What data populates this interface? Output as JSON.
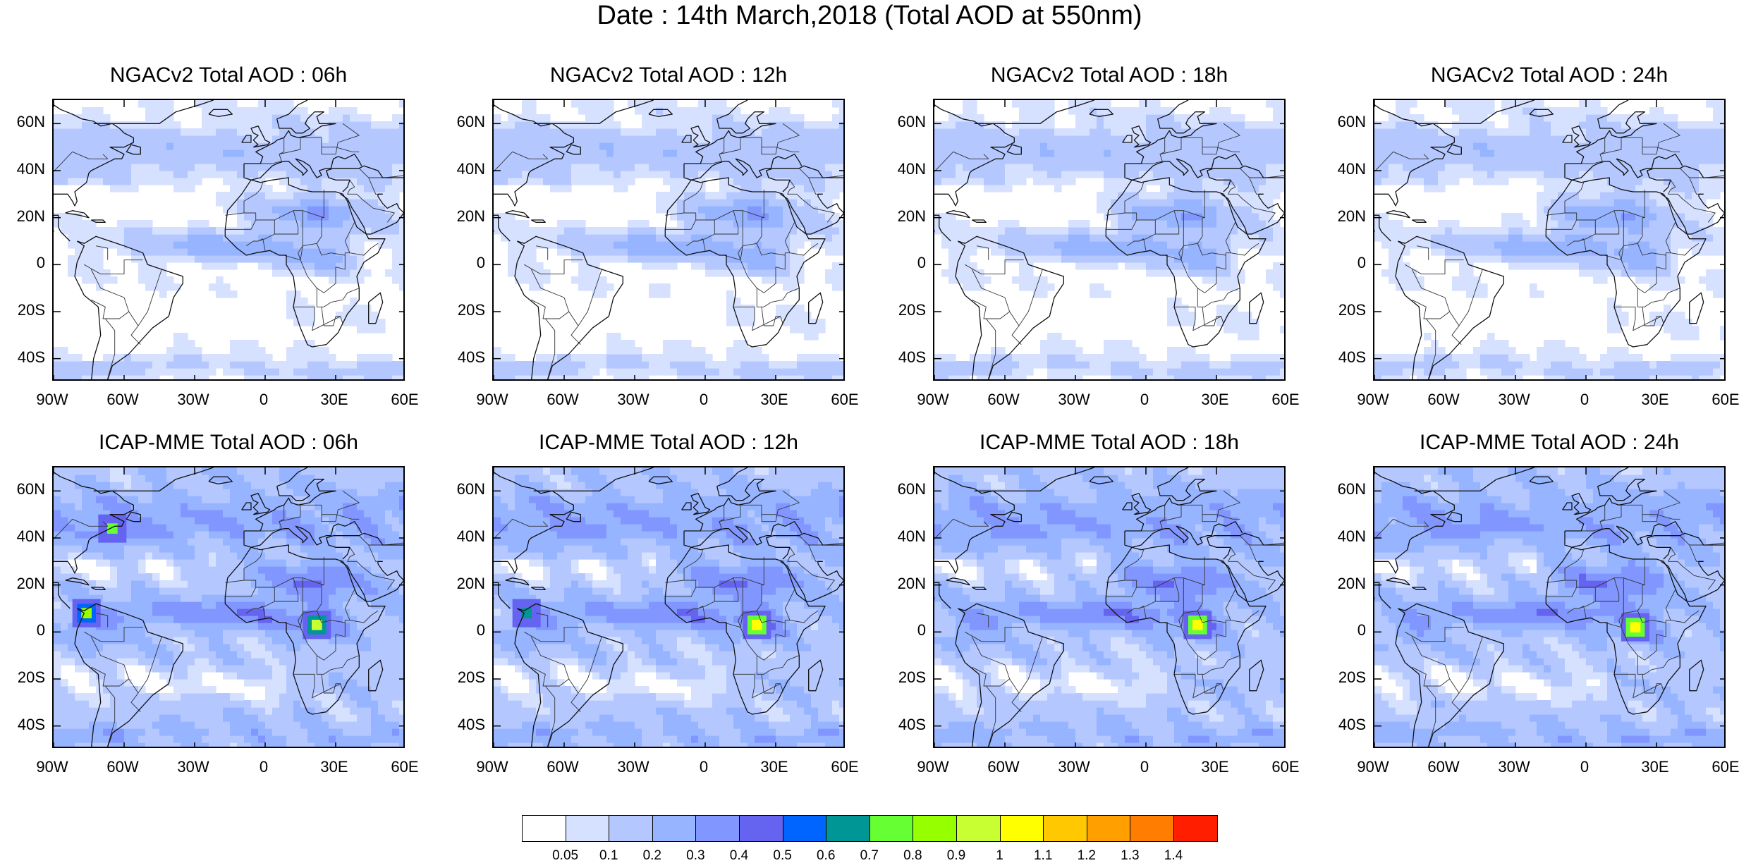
{
  "title": "Date : 14th March,2018 (Total AOD at 550nm)",
  "panels": [
    {
      "title": "NGACv2 Total AOD : 06h",
      "model": "NGACv2",
      "lead": "06h",
      "hotspots": []
    },
    {
      "title": "NGACv2 Total AOD : 12h",
      "model": "NGACv2",
      "lead": "12h",
      "hotspots": []
    },
    {
      "title": "NGACv2 Total AOD : 18h",
      "model": "NGACv2",
      "lead": "18h",
      "hotspots": []
    },
    {
      "title": "NGACv2 Total AOD : 24h",
      "model": "NGACv2",
      "lead": "24h",
      "hotspots": []
    },
    {
      "title": "ICAP-MME Total AOD : 06h",
      "model": "ICAP-MME",
      "lead": "06h",
      "hotspots": [
        {
          "lon": 22,
          "lat": 3,
          "aod": 0.9
        },
        {
          "lon": -76,
          "lat": 8,
          "aod": 0.8
        },
        {
          "lon": -65,
          "lat": 44,
          "aod": 0.7
        }
      ]
    },
    {
      "title": "ICAP-MME Total AOD : 12h",
      "model": "ICAP-MME",
      "lead": "12h",
      "hotspots": [
        {
          "lon": 22,
          "lat": 3,
          "aod": 1.0
        },
        {
          "lon": -76,
          "lat": 8,
          "aod": 0.6
        }
      ]
    },
    {
      "title": "ICAP-MME Total AOD : 18h",
      "model": "ICAP-MME",
      "lead": "18h",
      "hotspots": [
        {
          "lon": 22,
          "lat": 3,
          "aod": 1.0
        }
      ]
    },
    {
      "title": "ICAP-MME Total AOD : 24h",
      "model": "ICAP-MME",
      "lead": "24h",
      "hotspots": [
        {
          "lon": 21,
          "lat": 2,
          "aod": 1.0
        }
      ]
    }
  ],
  "map": {
    "lon_range": [
      -90,
      60
    ],
    "lat_range": [
      -50,
      70
    ],
    "lat_ticks": [
      60,
      40,
      20,
      0,
      -20,
      -40
    ],
    "lat_tick_labels": [
      "60N",
      "40N",
      "20N",
      "0",
      "20S",
      "40S"
    ],
    "lon_ticks": [
      -90,
      -60,
      -30,
      0,
      30,
      60
    ],
    "lon_tick_labels": [
      "90W",
      "60W",
      "30W",
      "0",
      "30E",
      "60E"
    ]
  },
  "colorbar": {
    "levels": [
      "0.05",
      "0.1",
      "0.2",
      "0.3",
      "0.4",
      "0.5",
      "0.6",
      "0.7",
      "0.8",
      "0.9",
      "1",
      "1.1",
      "1.2",
      "1.3",
      "1.4"
    ],
    "colors": [
      "#ffffff",
      "#d6e1ff",
      "#b4c8ff",
      "#96b4ff",
      "#8296ff",
      "#6464f0",
      "#0064ff",
      "#009696",
      "#66ff33",
      "#96ff00",
      "#c8ff32",
      "#ffff00",
      "#ffc800",
      "#ffa000",
      "#ff7d00",
      "#ff1e00"
    ]
  }
}
